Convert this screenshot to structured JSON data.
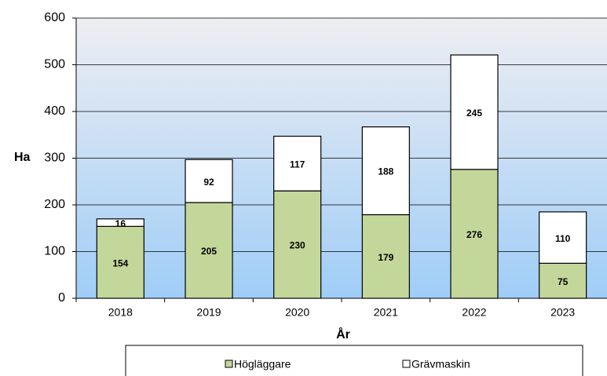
{
  "chart_data": {
    "type": "stacked_bar",
    "x_label": "År",
    "y_label": "Ha",
    "categories": [
      "2018",
      "2019",
      "2020",
      "2021",
      "2022",
      "2023"
    ],
    "series": [
      {
        "name": "Högläggare",
        "color": "#c4d79b",
        "values": [
          154,
          205,
          230,
          179,
          276,
          75
        ]
      },
      {
        "name": "Grävmaskin",
        "color": "#ffffff",
        "values": [
          16,
          92,
          117,
          188,
          245,
          110
        ]
      }
    ],
    "ylim": [
      0,
      600
    ],
    "yticks": [
      0,
      100,
      200,
      300,
      400,
      500,
      600
    ],
    "grid": true,
    "legend": "bottom"
  }
}
